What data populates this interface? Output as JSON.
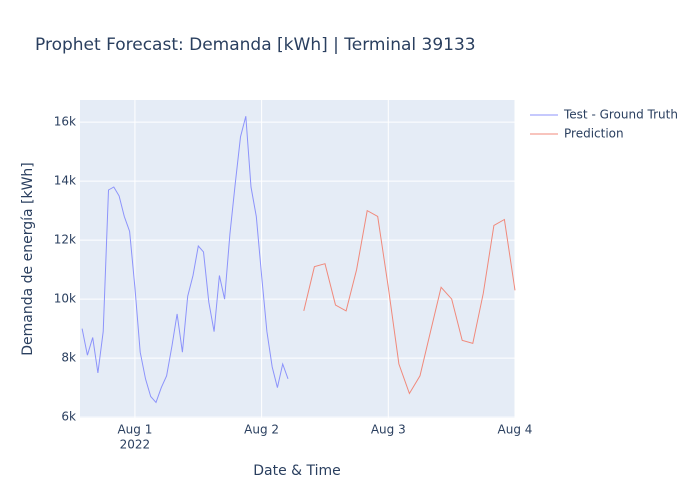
{
  "chart_data": {
    "type": "line",
    "title": "Prophet Forecast: Demanda [kWh] | Terminal 39133",
    "x_label": "Date & Time",
    "y_label": "Demanda de energía [kWh]",
    "xlim": [
      "2022-07-31T13:36",
      "2022-08-04T00:00"
    ],
    "xticks": [
      {
        "value": "2022-08-01T00:00",
        "label": "Aug 1"
      },
      {
        "value": "2022-08-02T00:00",
        "label": "Aug 2"
      },
      {
        "value": "2022-08-03T00:00",
        "label": "Aug 3"
      },
      {
        "value": "2022-08-04T00:00",
        "label": "Aug 4"
      }
    ],
    "x_year_label": "2022",
    "ylim": [
      5970,
      16750
    ],
    "yticks": [
      {
        "value": 6000,
        "label": "6k"
      },
      {
        "value": 8000,
        "label": "8k"
      },
      {
        "value": 10000,
        "label": "10k"
      },
      {
        "value": 12000,
        "label": "12k"
      },
      {
        "value": 14000,
        "label": "14k"
      },
      {
        "value": 16000,
        "label": "16k"
      }
    ],
    "grid": true,
    "legend": "outside-right",
    "series": [
      {
        "name": "Test - Ground Truth",
        "color": "#8c93fb",
        "x": [
          "2022-07-31T14:00",
          "2022-07-31T15:00",
          "2022-07-31T16:00",
          "2022-07-31T17:00",
          "2022-07-31T18:00",
          "2022-07-31T19:00",
          "2022-07-31T20:00",
          "2022-07-31T21:00",
          "2022-07-31T22:00",
          "2022-07-31T23:00",
          "2022-08-01T00:00",
          "2022-08-01T01:00",
          "2022-08-01T02:00",
          "2022-08-01T03:00",
          "2022-08-01T04:00",
          "2022-08-01T05:00",
          "2022-08-01T06:00",
          "2022-08-01T07:00",
          "2022-08-01T08:00",
          "2022-08-01T09:00",
          "2022-08-01T10:00",
          "2022-08-01T11:00",
          "2022-08-01T12:00",
          "2022-08-01T13:00",
          "2022-08-01T14:00",
          "2022-08-01T15:00",
          "2022-08-01T16:00",
          "2022-08-01T17:00",
          "2022-08-01T18:00",
          "2022-08-01T19:00",
          "2022-08-01T20:00",
          "2022-08-01T21:00",
          "2022-08-01T22:00",
          "2022-08-01T23:00",
          "2022-08-02T00:00",
          "2022-08-02T01:00",
          "2022-08-02T02:00",
          "2022-08-02T03:00",
          "2022-08-02T04:00",
          "2022-08-02T05:00"
        ],
        "values": [
          9000,
          8100,
          8700,
          7500,
          8900,
          13700,
          13800,
          13500,
          12800,
          12300,
          10400,
          8200,
          7300,
          6700,
          6500,
          7000,
          7400,
          8400,
          9500,
          8200,
          10100,
          10800,
          11800,
          11600,
          9900,
          8900,
          10800,
          10000,
          12200,
          13900,
          15500,
          16200,
          13800,
          12800,
          10800,
          8900,
          7700,
          7000,
          7800,
          7300
        ]
      },
      {
        "name": "Prediction",
        "color": "#f0897b",
        "x": [
          "2022-08-02T08:00",
          "2022-08-02T10:00",
          "2022-08-02T12:00",
          "2022-08-02T14:00",
          "2022-08-02T16:00",
          "2022-08-02T18:00",
          "2022-08-02T20:00",
          "2022-08-02T22:00",
          "2022-08-03T00:00",
          "2022-08-03T02:00",
          "2022-08-03T04:00",
          "2022-08-03T06:00",
          "2022-08-03T08:00",
          "2022-08-03T10:00",
          "2022-08-03T12:00",
          "2022-08-03T14:00",
          "2022-08-03T16:00",
          "2022-08-03T18:00",
          "2022-08-03T20:00",
          "2022-08-03T22:00",
          "2022-08-04T00:00"
        ],
        "values": [
          9600,
          11100,
          11200,
          9800,
          9600,
          11000,
          13000,
          12800,
          10400,
          7800,
          6800,
          7400,
          8900,
          10400,
          10000,
          8600,
          8500,
          10200,
          12500,
          12700,
          10300
        ]
      }
    ]
  }
}
